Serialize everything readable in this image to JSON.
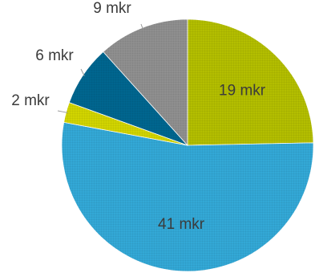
{
  "chart_data": {
    "type": "pie",
    "title": "",
    "unit": "mkr",
    "slices": [
      {
        "label": "19 mkr",
        "value": 19,
        "color": "#b3be00"
      },
      {
        "label": "41 mkr",
        "value": 41,
        "color": "#33a8d6"
      },
      {
        "label": "2 mkr",
        "value": 2,
        "color": "#d1d400"
      },
      {
        "label": "6 mkr",
        "value": 6,
        "color": "#00668f"
      },
      {
        "label": "9 mkr",
        "value": 9,
        "color": "#8f8f8f"
      }
    ],
    "start_angle_deg": 0,
    "direction": "clockwise",
    "slice_pattern": "grid-texture",
    "legend": "none",
    "label_placement": [
      "inside",
      "inside",
      "outside",
      "outside",
      "outside"
    ]
  }
}
